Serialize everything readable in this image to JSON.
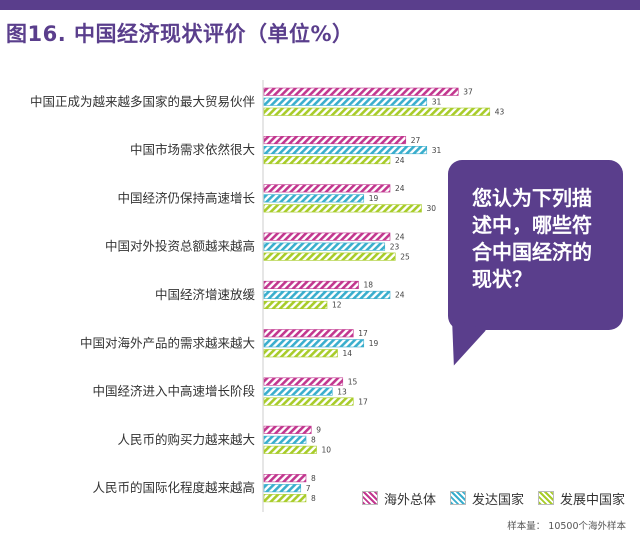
{
  "title": "图16. 中国经济现状评价（单位%）",
  "bubble_text": "您认为下列描\n述中，哪些符\n合中国经济的\n现状？",
  "footnote": "样本量： 10500个海外样本",
  "colors": {
    "accent": "#5a3e8c",
    "series": [
      "#c2378f",
      "#3aaecd",
      "#a8cc2a"
    ]
  },
  "chart_data": {
    "type": "bar",
    "orientation": "horizontal",
    "categories": [
      "中国正成为越来越多国家的最大贸易伙伴",
      "中国市场需求依然很大",
      "中国经济仍保持高速增长",
      "中国对外投资总额越来越高",
      "中国经济增速放缓",
      "中国对海外产品的需求越来越大",
      "中国经济进入中高速增长阶段",
      "人民币的购买力越来越大",
      "人民币的国际化程度越来越高"
    ],
    "series": [
      {
        "name": "海外总体",
        "values": [
          37,
          27,
          24,
          24,
          18,
          17,
          15,
          9,
          8
        ]
      },
      {
        "name": "发达国家",
        "values": [
          31,
          31,
          19,
          23,
          24,
          19,
          13,
          8,
          7
        ]
      },
      {
        "name": "发展中国家",
        "values": [
          43,
          24,
          30,
          25,
          12,
          14,
          17,
          10,
          8
        ]
      }
    ],
    "title": "图16. 中国经济现状评价（单位%）",
    "legend_position": "bottom-right"
  }
}
